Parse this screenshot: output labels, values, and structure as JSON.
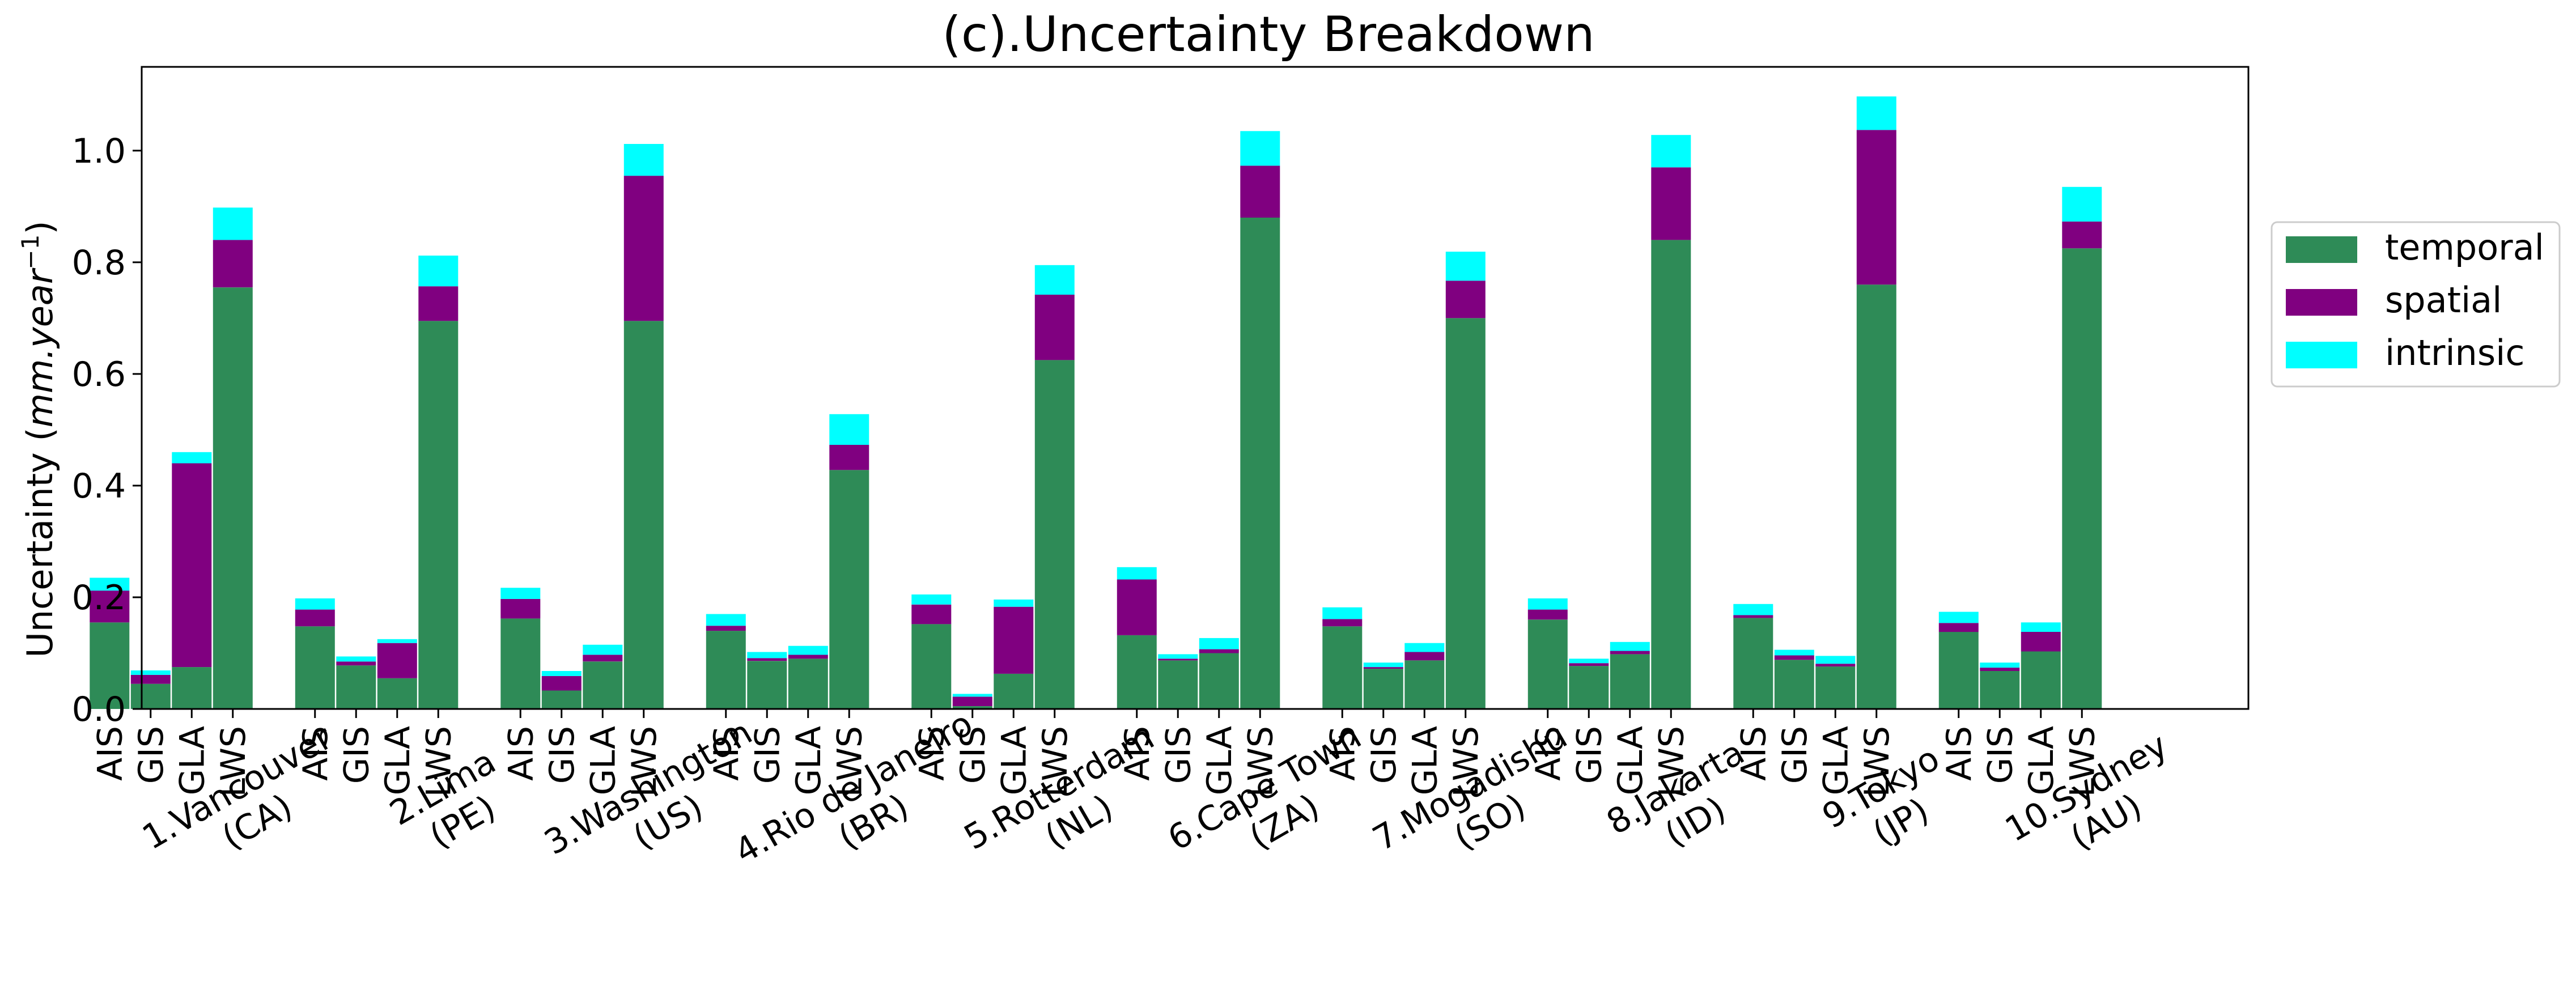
{
  "chart_data": {
    "type": "bar",
    "stacked": true,
    "title": "(c).Uncertainty Breakdown",
    "ylabel": "Uncertainty (",
    "ylabel_unit_base": "mm.year",
    "ylabel_unit_exp": "−1",
    "ylabel_close": ")",
    "ylim": [
      0,
      1.15
    ],
    "yticks": [
      0.0,
      0.2,
      0.4,
      0.6,
      0.8,
      1.0
    ],
    "ytick_labels": [
      "0.0",
      "0.2",
      "0.4",
      "0.6",
      "0.8",
      "1.0"
    ],
    "grid": false,
    "legend_position": "outside-right-top",
    "components": [
      "AIS",
      "GIS",
      "GLA",
      "LWS"
    ],
    "cities": [
      {
        "line1": "1.Vancouver",
        "line2": "(CA)"
      },
      {
        "line1": "2.Lima",
        "line2": "(PE)"
      },
      {
        "line1": "3.Washington",
        "line2": "(US)"
      },
      {
        "line1": "4.Rio de Janeiro",
        "line2": "(BR)"
      },
      {
        "line1": "5.Rotterdam",
        "line2": "(NL)"
      },
      {
        "line1": "6.Cape Town",
        "line2": "(ZA)"
      },
      {
        "line1": "7.Mogadishu",
        "line2": "(SO)"
      },
      {
        "line1": "8.Jakarta",
        "line2": "(ID)"
      },
      {
        "line1": "9.Tokyo",
        "line2": "(JP)"
      },
      {
        "line1": "10.Sydney",
        "line2": "(AU)"
      }
    ],
    "series": [
      {
        "name": "temporal",
        "color": "#2e8b57",
        "values": [
          [
            0.155,
            0.045,
            0.075,
            0.755
          ],
          [
            0.148,
            0.078,
            0.055,
            0.695
          ],
          [
            0.162,
            0.033,
            0.085,
            0.695
          ],
          [
            0.14,
            0.086,
            0.09,
            0.428
          ],
          [
            0.152,
            0.005,
            0.063,
            0.625
          ],
          [
            0.132,
            0.087,
            0.1,
            0.88
          ],
          [
            0.148,
            0.072,
            0.087,
            0.7
          ],
          [
            0.16,
            0.077,
            0.098,
            0.84
          ],
          [
            0.163,
            0.088,
            0.076,
            0.76
          ],
          [
            0.138,
            0.068,
            0.103,
            0.825
          ]
        ]
      },
      {
        "name": "spatial",
        "color": "#800080",
        "values": [
          [
            0.057,
            0.016,
            0.365,
            0.085
          ],
          [
            0.03,
            0.007,
            0.063,
            0.062
          ],
          [
            0.035,
            0.026,
            0.012,
            0.26
          ],
          [
            0.009,
            0.005,
            0.007,
            0.045
          ],
          [
            0.035,
            0.017,
            0.12,
            0.117
          ],
          [
            0.1,
            0.003,
            0.007,
            0.093
          ],
          [
            0.013,
            0.003,
            0.015,
            0.067
          ],
          [
            0.018,
            0.005,
            0.006,
            0.13
          ],
          [
            0.005,
            0.008,
            0.005,
            0.277
          ],
          [
            0.016,
            0.006,
            0.035,
            0.048
          ]
        ]
      },
      {
        "name": "intrinsic",
        "color": "#00ffff",
        "values": [
          [
            0.023,
            0.008,
            0.02,
            0.058
          ],
          [
            0.02,
            0.009,
            0.007,
            0.055
          ],
          [
            0.02,
            0.009,
            0.018,
            0.057
          ],
          [
            0.021,
            0.011,
            0.016,
            0.055
          ],
          [
            0.018,
            0.005,
            0.013,
            0.053
          ],
          [
            0.022,
            0.008,
            0.02,
            0.062
          ],
          [
            0.021,
            0.008,
            0.016,
            0.052
          ],
          [
            0.02,
            0.008,
            0.016,
            0.058
          ],
          [
            0.02,
            0.01,
            0.014,
            0.06
          ],
          [
            0.02,
            0.009,
            0.017,
            0.062
          ]
        ]
      }
    ]
  }
}
